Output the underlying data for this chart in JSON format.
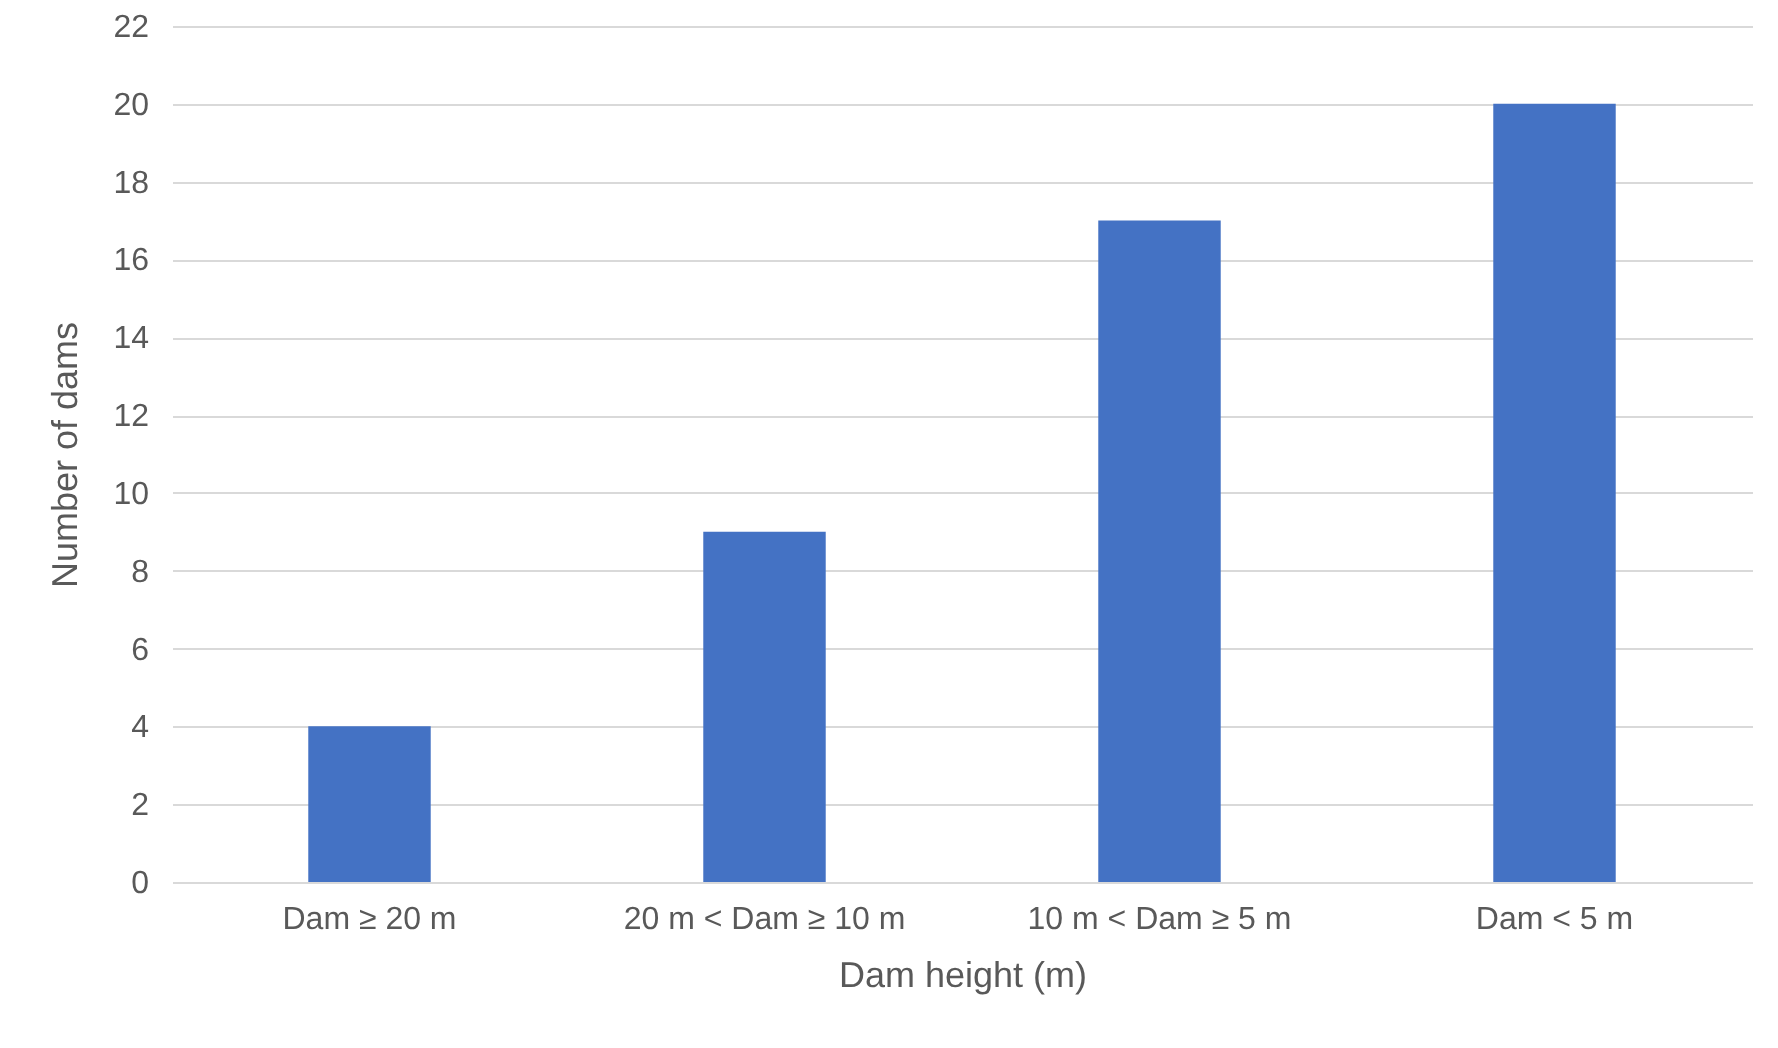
{
  "chart_data": {
    "type": "bar",
    "xlabel": "Dam height (m)",
    "ylabel": "Number of dams",
    "categories": [
      "Dam ≥ 20 m",
      "20 m < Dam ≥ 10 m",
      "10 m < Dam ≥ 5 m",
      "Dam < 5 m"
    ],
    "values": [
      4,
      9,
      17,
      20
    ],
    "color": "#4472c4",
    "ylim": [
      0,
      22
    ],
    "yticks": [
      0,
      2,
      4,
      6,
      8,
      10,
      12,
      14,
      16,
      18,
      20,
      22
    ],
    "grid": "y"
  }
}
